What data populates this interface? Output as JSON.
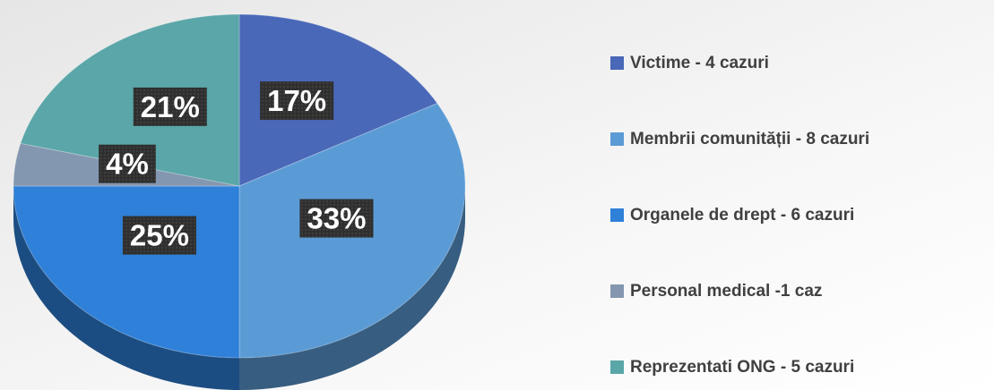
{
  "chart_data": {
    "type": "pie",
    "categories": [
      "Victime - 4 cazuri",
      "Membrii comunității - 8 cazuri",
      "Organele de drept - 6 cazuri",
      "Personal medical -1 caz",
      "Reprezentati ONG - 5 cazuri"
    ],
    "values": [
      17,
      33,
      25,
      4,
      21
    ],
    "value_labels": [
      "17%",
      "33%",
      "25%",
      "4%",
      "21%"
    ],
    "colors": [
      "#4a68b8",
      "#5b9bd5",
      "#2f80d8",
      "#8497b0",
      "#5aa6a8"
    ],
    "legend": "right"
  }
}
